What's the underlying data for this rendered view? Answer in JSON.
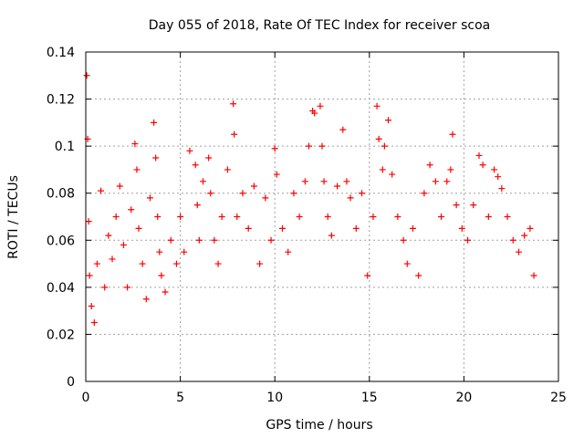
{
  "chart_data": {
    "type": "scatter",
    "title": "Day 055 of 2018, Rate Of TEC Index for receiver scoa",
    "xlabel": "GPS time / hours",
    "ylabel": "ROTI / TECUs",
    "xlim": [
      0,
      25
    ],
    "ylim": [
      0,
      0.14
    ],
    "xticks": [
      0,
      5,
      10,
      15,
      20,
      25
    ],
    "yticks": [
      0,
      0.02,
      0.04,
      0.06,
      0.08,
      0.1,
      0.12,
      0.14
    ],
    "xtick_labels": [
      "0",
      "5",
      "10",
      "15",
      "20",
      "25"
    ],
    "ytick_labels": [
      "0",
      "0.02",
      "0.04",
      "0.06",
      "0.08",
      "0.1",
      "0.12",
      "0.14"
    ],
    "grid": true,
    "marker": "plus",
    "marker_color": "#ff0000",
    "legend": "none",
    "series": [
      {
        "x": [
          0.05,
          0.1,
          0.15,
          0.2,
          0.3,
          0.45,
          0.6,
          0.8,
          1.0,
          1.2,
          1.4,
          1.6,
          1.8,
          2.0,
          2.2,
          2.4,
          2.6,
          2.7,
          2.8,
          3.0,
          3.2,
          3.4,
          3.6,
          3.7,
          3.8,
          3.9,
          4.0,
          4.2,
          4.5,
          4.8,
          5.0,
          5.2,
          5.5,
          5.8,
          5.9,
          6.0,
          6.2,
          6.5,
          6.6,
          6.8,
          7.0,
          7.2,
          7.5,
          7.8,
          7.85,
          8.0,
          8.3,
          8.6,
          8.9,
          9.2,
          9.5,
          9.8,
          10.0,
          10.1,
          10.4,
          10.7,
          11.0,
          11.3,
          11.6,
          11.8,
          12.0,
          12.1,
          12.4,
          12.5,
          12.6,
          12.8,
          13.0,
          13.3,
          13.6,
          13.8,
          14.0,
          14.3,
          14.6,
          14.9,
          15.2,
          15.4,
          15.5,
          15.7,
          15.8,
          16.0,
          16.2,
          16.5,
          16.8,
          17.0,
          17.3,
          17.6,
          17.9,
          18.2,
          18.5,
          18.8,
          19.1,
          19.3,
          19.4,
          19.6,
          19.9,
          20.2,
          20.5,
          20.8,
          21.0,
          21.3,
          21.6,
          21.8,
          22.0,
          22.3,
          22.6,
          22.9,
          23.2,
          23.5,
          23.7
        ],
        "y": [
          0.13,
          0.103,
          0.068,
          0.045,
          0.032,
          0.025,
          0.05,
          0.081,
          0.04,
          0.062,
          0.052,
          0.07,
          0.083,
          0.058,
          0.04,
          0.073,
          0.101,
          0.09,
          0.065,
          0.05,
          0.035,
          0.078,
          0.11,
          0.095,
          0.07,
          0.055,
          0.045,
          0.038,
          0.06,
          0.05,
          0.07,
          0.055,
          0.098,
          0.092,
          0.075,
          0.06,
          0.085,
          0.095,
          0.08,
          0.06,
          0.05,
          0.07,
          0.09,
          0.118,
          0.105,
          0.07,
          0.08,
          0.065,
          0.083,
          0.05,
          0.078,
          0.06,
          0.099,
          0.088,
          0.065,
          0.055,
          0.08,
          0.07,
          0.085,
          0.1,
          0.115,
          0.114,
          0.117,
          0.1,
          0.085,
          0.07,
          0.062,
          0.083,
          0.107,
          0.085,
          0.078,
          0.065,
          0.08,
          0.045,
          0.07,
          0.117,
          0.103,
          0.09,
          0.1,
          0.111,
          0.088,
          0.07,
          0.06,
          0.05,
          0.065,
          0.045,
          0.08,
          0.092,
          0.085,
          0.07,
          0.085,
          0.09,
          0.105,
          0.075,
          0.065,
          0.06,
          0.075,
          0.096,
          0.092,
          0.07,
          0.09,
          0.087,
          0.082,
          0.07,
          0.06,
          0.055,
          0.062,
          0.065,
          0.045
        ]
      }
    ]
  }
}
